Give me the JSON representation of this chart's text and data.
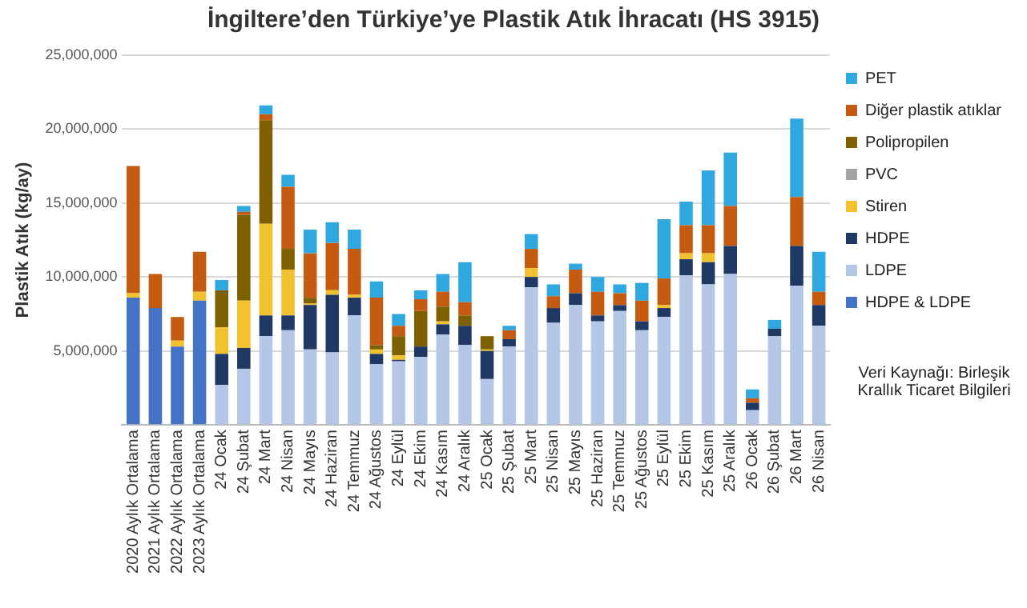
{
  "chart_data": {
    "type": "bar",
    "stacked": true,
    "title": "İngiltere’den Türkiye’ye Plastik Atık İhracatı (HS 3915)",
    "ylabel": "Plastik Atık (kg/ay)",
    "categories": [
      "2020 Aylık Ortalama",
      "2021 Aylık Ortalama",
      "2022 Aylık Ortalama",
      "2023 Aylık Ortalama",
      "24 Ocak",
      "24 Şubat",
      "24 Mart",
      "24 Nisan",
      "24 Mayıs",
      "24 Haziran",
      "24 Temmuz",
      "24 Ağustos",
      "24 Eylül",
      "24 Ekim",
      "24 Kasım",
      "24 Aralık",
      "25 Ocak",
      "25 Şubat",
      "25 Mart",
      "25 Nisan",
      "25 Mayıs",
      "25 Haziran",
      "25 Temmuz",
      "25 Ağustos",
      "25 Eylül",
      "25 Ekim",
      "25 Kasım",
      "25 Aralık",
      "26 Ocak",
      "26 Şubat",
      "26 Mart",
      "26 Nisan"
    ],
    "series": [
      {
        "name": "HDPE & LDPE",
        "color": "#4472c4",
        "values": [
          8600000,
          7900000,
          5300000,
          8400000,
          null,
          null,
          null,
          null,
          null,
          null,
          null,
          null,
          null,
          null,
          null,
          null,
          null,
          null,
          null,
          null,
          null,
          null,
          null,
          null,
          null,
          null,
          null,
          null,
          null,
          null,
          null,
          null
        ]
      },
      {
        "name": "LDPE",
        "color": "#b4c7e7",
        "values": [
          null,
          null,
          null,
          null,
          2700000,
          3800000,
          6000000,
          6400000,
          5100000,
          4900000,
          7400000,
          4100000,
          4300000,
          4600000,
          6100000,
          5400000,
          3100000,
          5300000,
          9300000,
          6900000,
          8100000,
          7000000,
          7700000,
          6400000,
          7300000,
          10100000,
          9500000,
          10200000,
          1000000,
          6000000,
          9400000,
          6700000
        ]
      },
      {
        "name": "HDPE",
        "color": "#1f3864",
        "values": [
          null,
          null,
          null,
          null,
          2100000,
          1400000,
          1400000,
          1000000,
          3000000,
          3900000,
          1200000,
          700000,
          100000,
          700000,
          700000,
          1300000,
          1900000,
          500000,
          700000,
          1000000,
          800000,
          400000,
          400000,
          600000,
          600000,
          1100000,
          1500000,
          1900000,
          500000,
          500000,
          2700000,
          1400000
        ]
      },
      {
        "name": "Stiren",
        "color": "#f2c12e",
        "values": [
          300000,
          null,
          400000,
          600000,
          1800000,
          3200000,
          6200000,
          3100000,
          100000,
          300000,
          200000,
          300000,
          300000,
          null,
          200000,
          null,
          100000,
          null,
          600000,
          null,
          null,
          null,
          null,
          null,
          200000,
          400000,
          600000,
          null,
          null,
          null,
          null,
          null
        ]
      },
      {
        "name": "PVC",
        "color": "#a5a5a5",
        "values": [
          null,
          null,
          null,
          null,
          null,
          null,
          null,
          null,
          null,
          null,
          null,
          null,
          null,
          null,
          null,
          null,
          null,
          null,
          null,
          null,
          null,
          null,
          null,
          null,
          null,
          null,
          null,
          null,
          null,
          null,
          null,
          null
        ]
      },
      {
        "name": "Polipropilen",
        "color": "#7f6000",
        "values": [
          null,
          null,
          null,
          null,
          2500000,
          5800000,
          7000000,
          1400000,
          400000,
          null,
          null,
          300000,
          1300000,
          2400000,
          1000000,
          700000,
          900000,
          null,
          null,
          null,
          null,
          null,
          null,
          null,
          null,
          null,
          null,
          null,
          null,
          null,
          null,
          null
        ]
      },
      {
        "name": "Diğer plastik atıklar",
        "color": "#c55a11",
        "values": [
          8600000,
          2300000,
          1600000,
          2700000,
          null,
          200000,
          400000,
          4200000,
          3000000,
          3200000,
          3100000,
          3200000,
          700000,
          800000,
          1000000,
          900000,
          null,
          600000,
          1300000,
          800000,
          1600000,
          1600000,
          800000,
          1400000,
          1800000,
          1900000,
          1900000,
          2700000,
          300000,
          null,
          3300000,
          900000
        ]
      },
      {
        "name": "PET",
        "color": "#2ea8df",
        "values": [
          null,
          null,
          null,
          null,
          700000,
          400000,
          600000,
          800000,
          1600000,
          1400000,
          1300000,
          1100000,
          800000,
          600000,
          1200000,
          2700000,
          null,
          300000,
          1000000,
          800000,
          400000,
          1000000,
          600000,
          1200000,
          4000000,
          1600000,
          3700000,
          3600000,
          600000,
          600000,
          5300000,
          2700000
        ]
      }
    ],
    "ylim": [
      0,
      25000000
    ],
    "yticks": [
      {
        "value": 0,
        "label": null
      },
      {
        "value": 5000000,
        "label": "5,000,000"
      },
      {
        "value": 10000000,
        "label": "10,000,000"
      },
      {
        "value": 15000000,
        "label": "15,000,000"
      },
      {
        "value": 20000000,
        "label": "20,000,000"
      },
      {
        "value": 25000000,
        "label": "25,000,000"
      }
    ],
    "grid": "y",
    "legend": "right",
    "annotations": [
      "Veri Kaynağı: Birleşik Krallık Ticaret Bilgileri"
    ]
  }
}
